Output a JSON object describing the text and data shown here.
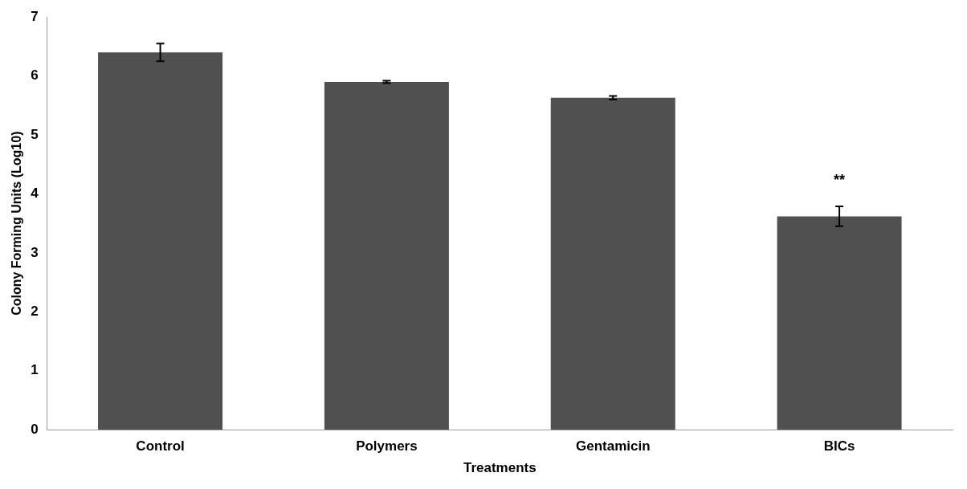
{
  "chart_data": {
    "type": "bar",
    "xlabel": "Treatments",
    "ylabel": "Colony Forming Units (Log10)",
    "categories": [
      "Control",
      "Polymers",
      "Gentamicin",
      "BICs"
    ],
    "values": [
      6.4,
      5.9,
      5.63,
      3.62
    ],
    "errors": [
      0.15,
      0.02,
      0.03,
      0.17
    ],
    "color": "#505050",
    "ylim": [
      0,
      7
    ],
    "yticks": [
      0,
      1,
      2,
      3,
      4,
      5,
      6,
      7
    ],
    "grid": false,
    "legend": false,
    "annotations": [
      {
        "text": "**",
        "x": "BICs",
        "y": 3.79
      }
    ]
  }
}
